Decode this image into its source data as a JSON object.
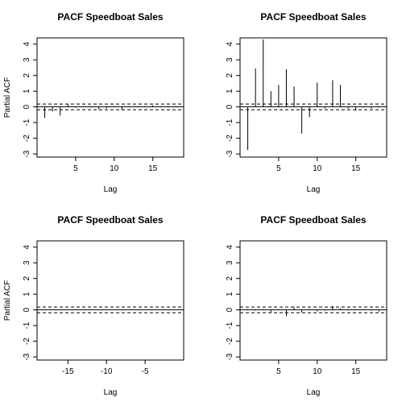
{
  "chart_data": [
    {
      "type": "bar",
      "title": "PACF Speedboat Sales",
      "xlabel": "Lag",
      "ylabel": "Partial ACF",
      "xlim": [
        0,
        19
      ],
      "ylim": [
        -3.2,
        4.4
      ],
      "xticks": [
        5,
        10,
        15
      ],
      "yticks": [
        -3,
        -2,
        -1,
        0,
        1,
        2,
        3,
        4
      ],
      "ci": [
        0.18,
        -0.18
      ],
      "x": [
        1,
        2,
        3,
        4,
        5,
        6,
        7,
        8,
        9,
        10,
        11,
        12,
        13,
        14,
        15,
        16,
        17,
        18
      ],
      "values": [
        -0.7,
        -0.3,
        -0.55,
        0.15,
        -0.05,
        0.05,
        -0.05,
        -0.15,
        -0.1,
        0.05,
        -0.2,
        0.05,
        0.05,
        0.05,
        0.1,
        0.05,
        0.05,
        0.05
      ]
    },
    {
      "type": "bar",
      "title": "PACF Speedboat Sales",
      "xlabel": "Lag",
      "ylabel": "",
      "xlim": [
        0,
        19
      ],
      "ylim": [
        -3.2,
        4.4
      ],
      "xticks": [
        5,
        10,
        15
      ],
      "yticks": [
        -3,
        -2,
        -1,
        0,
        1,
        2,
        3,
        4
      ],
      "ci": [
        0.18,
        -0.18
      ],
      "x": [
        1,
        2,
        3,
        4,
        5,
        6,
        7,
        8,
        9,
        10,
        11,
        12,
        13,
        14,
        15,
        16,
        17,
        18
      ],
      "values": [
        -2.75,
        2.45,
        4.3,
        1.0,
        1.4,
        2.4,
        1.3,
        -1.7,
        -0.65,
        1.55,
        -0.1,
        1.7,
        1.4,
        -0.1,
        -0.25,
        -0.05,
        -0.1,
        -0.05
      ]
    },
    {
      "type": "bar",
      "title": "PACF Speedboat Sales",
      "xlabel": "Lag",
      "ylabel": "Partial ACF",
      "xlim": [
        -19,
        0
      ],
      "ylim": [
        -3.2,
        4.4
      ],
      "xticks": [
        -15,
        -10,
        -5
      ],
      "yticks": [
        -3,
        -2,
        -1,
        0,
        1,
        2,
        3,
        4
      ],
      "ci": [
        0.18,
        -0.18
      ],
      "x": [],
      "values": []
    },
    {
      "type": "bar",
      "title": "PACF Speedboat Sales",
      "xlabel": "Lag",
      "ylabel": "",
      "xlim": [
        0,
        19
      ],
      "ylim": [
        -3.2,
        4.4
      ],
      "xticks": [
        5,
        10,
        15
      ],
      "yticks": [
        -3,
        -2,
        -1,
        0,
        1,
        2,
        3,
        4
      ],
      "ci": [
        0.18,
        -0.18
      ],
      "x": [
        1,
        2,
        3,
        4,
        5,
        6,
        7,
        8,
        9,
        10,
        11,
        12,
        13,
        14,
        15,
        16,
        17,
        18
      ],
      "values": [
        0.05,
        -0.05,
        0.05,
        -0.15,
        0.05,
        -0.4,
        0.15,
        -0.15,
        0.05,
        -0.1,
        -0.05,
        0.25,
        0.1,
        0.05,
        0.05,
        0.05,
        -0.05,
        -0.1
      ]
    }
  ]
}
